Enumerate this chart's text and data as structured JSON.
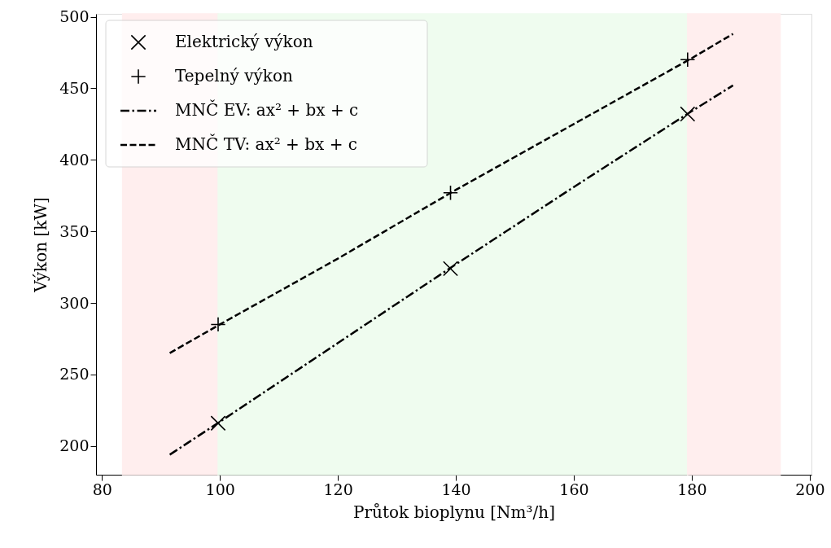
{
  "chart_data": {
    "type": "scatter",
    "xlabel": "Průtok bioplynu [Nm³/h]",
    "ylabel": "Výkon [kW]",
    "xlim": [
      79,
      200.3
    ],
    "ylim": [
      180,
      502
    ],
    "xticks": [
      80,
      100,
      120,
      140,
      160,
      180,
      200
    ],
    "yticks": [
      200,
      250,
      300,
      350,
      400,
      450,
      500
    ],
    "grid": false,
    "legend": "top left",
    "bands": [
      {
        "axis": "x",
        "from": 83.5,
        "to": 99.7,
        "color": "#ffeeee"
      },
      {
        "axis": "x",
        "from": 99.7,
        "to": 179.3,
        "color": "#effcef"
      },
      {
        "axis": "x",
        "from": 179.3,
        "to": 195,
        "color": "#ffeeee"
      }
    ],
    "series": [
      {
        "name": "Elektrický výkon",
        "marker": "x",
        "color": "#000000",
        "x": [
          99.7,
          139.1,
          179.3
        ],
        "values": [
          216,
          324,
          432
        ]
      },
      {
        "name": "Tepelný výkon",
        "marker": "cross",
        "color": "#000000",
        "x": [
          99.7,
          139.1,
          179.3
        ],
        "values": [
          285,
          377,
          470
        ]
      },
      {
        "name": "MNČ EV: ax² + bx + c",
        "type": "line",
        "line_style": "dashdot",
        "color": "#000000",
        "x": [
          91.5,
          100,
          120,
          140,
          160,
          180,
          187
        ],
        "values": [
          194,
          217,
          272,
          327,
          381,
          434,
          452
        ]
      },
      {
        "name": "MNČ TV: ax² + bx + c",
        "type": "line",
        "line_style": "dashed",
        "color": "#000000",
        "x": [
          91.5,
          100,
          120,
          140,
          160,
          180,
          187
        ],
        "values": [
          265,
          285,
          331,
          379,
          425,
          471,
          488
        ]
      }
    ]
  }
}
